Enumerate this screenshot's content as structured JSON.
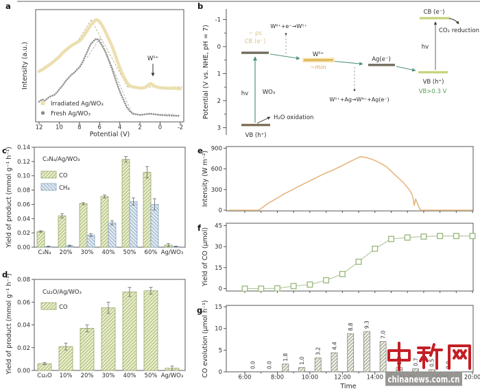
{
  "watermark": {
    "cn_text": "中新网",
    "site": "chinanews.com.cn",
    "red": "#c2161d",
    "box_color": "#8f8d8a"
  },
  "chart_data": [
    {
      "id": "a",
      "letter": "a",
      "type": "line",
      "xlabel": "Potential (V)",
      "ylabel": "Intensity (a.u.)",
      "x_ticks": [
        12,
        10,
        8,
        6,
        4,
        2,
        0,
        -2
      ],
      "x_range": [
        12,
        -2
      ],
      "annotation": {
        "text": "W⁵⁺",
        "x_v": 1.0
      },
      "legend": [
        {
          "label": "Irradiated Ag/WO₃",
          "color": "#ecdfb0",
          "marker": "square"
        },
        {
          "label": "Fresh Ag/WO₃",
          "color": "#8a8a8a",
          "marker": "circle"
        }
      ],
      "series": [
        {
          "name": "Irradiated Ag/WO₃",
          "color": "#ecdfb0",
          "points": [
            [
              12,
              45
            ],
            [
              11.6,
              47
            ],
            [
              11.2,
              49.5
            ],
            [
              10.8,
              52
            ],
            [
              10.4,
              55
            ],
            [
              10,
              58
            ],
            [
              9.6,
              62
            ],
            [
              9.2,
              65
            ],
            [
              8.8,
              68
            ],
            [
              8.4,
              70
            ],
            [
              8,
              72
            ],
            [
              7.7,
              75
            ],
            [
              7.4,
              79
            ],
            [
              7.1,
              83
            ],
            [
              6.9,
              86
            ],
            [
              6.7,
              88
            ],
            [
              6.5,
              90
            ],
            [
              6.3,
              91
            ],
            [
              6.1,
              90
            ],
            [
              5.9,
              88
            ],
            [
              5.7,
              85
            ],
            [
              5.4,
              80
            ],
            [
              5.1,
              74
            ],
            [
              4.8,
              68
            ],
            [
              4.5,
              61
            ],
            [
              4.2,
              53
            ],
            [
              3.9,
              46
            ],
            [
              3.6,
              40
            ],
            [
              3.3,
              35
            ],
            [
              3,
              32
            ],
            [
              2.6,
              31
            ],
            [
              2.2,
              30.5
            ],
            [
              1.8,
              30
            ],
            [
              1.4,
              31
            ],
            [
              1.1,
              33.5
            ],
            [
              0.9,
              34
            ],
            [
              0.6,
              32
            ],
            [
              0.3,
              31
            ],
            [
              0,
              30.5
            ],
            [
              -0.6,
              30
            ],
            [
              -1.2,
              30
            ],
            [
              -2,
              29.5
            ]
          ]
        },
        {
          "name": "Fresh Ag/WO₃",
          "color": "#8f8f8f",
          "points": [
            [
              12,
              18
            ],
            [
              11.7,
              20
            ],
            [
              11.4,
              19
            ],
            [
              11.1,
              21.5
            ],
            [
              10.8,
              23
            ],
            [
              10.5,
              24
            ],
            [
              10.2,
              26.5
            ],
            [
              10,
              29
            ],
            [
              9.7,
              32
            ],
            [
              9.4,
              36
            ],
            [
              9.1,
              39
            ],
            [
              8.8,
              42
            ],
            [
              8.5,
              44
            ],
            [
              8.2,
              47
            ],
            [
              8,
              48.5
            ],
            [
              7.7,
              53
            ],
            [
              7.4,
              59
            ],
            [
              7.1,
              65
            ],
            [
              6.9,
              69
            ],
            [
              6.7,
              71
            ],
            [
              6.5,
              73
            ],
            [
              6.3,
              74
            ],
            [
              6.1,
              73
            ],
            [
              5.9,
              70
            ],
            [
              5.7,
              67
            ],
            [
              5.4,
              62
            ],
            [
              5.1,
              55
            ],
            [
              4.8,
              48
            ],
            [
              4.5,
              40
            ],
            [
              4.2,
              32
            ],
            [
              3.9,
              25
            ],
            [
              3.6,
              19
            ],
            [
              3.3,
              13
            ],
            [
              3,
              9.5
            ],
            [
              2.7,
              7.5
            ],
            [
              2.4,
              6.8
            ],
            [
              2,
              6.1
            ],
            [
              1.5,
              6.7
            ],
            [
              1,
              7.4
            ],
            [
              0.5,
              6.7
            ],
            [
              0,
              6.1
            ],
            [
              -0.8,
              5.7
            ],
            [
              -1.5,
              5.5
            ],
            [
              -2,
              5.5
            ]
          ]
        }
      ]
    },
    {
      "id": "b",
      "letter": "b",
      "type": "diagram",
      "ylabel": "Potential (V vs. NHE, pH = 7)",
      "y_ticks": [
        -1,
        0,
        1,
        2,
        3
      ],
      "levels": [
        {
          "label": "CB (e⁻)",
          "sub": "~ ps",
          "V": 0.23,
          "color": "#716d5e"
        },
        {
          "label": "VB (h⁺)",
          "V": 2.9,
          "color": "#7e7158"
        },
        {
          "label": "W⁵⁺",
          "sub": "~min",
          "V": 0.5,
          "color": "#e3b95c"
        },
        {
          "label": "Ag(e⁻)",
          "V": 0.68,
          "color": "#716d5e"
        },
        {
          "label": "VB (h⁺)",
          "V": 0.95,
          "color": "#c7d57f"
        },
        {
          "label": "CB (e⁻)",
          "V": -1.05,
          "color": "#c7d57f"
        }
      ],
      "texts": {
        "ps": "~ ps",
        "cb1": "CB (e⁻)",
        "hv1": "hv",
        "wo3": "WO₃",
        "vb1": "VB (h⁺)",
        "h2o": "H₂O oxidation",
        "rxn1": "W⁶⁺+e⁻→W⁵⁺",
        "w5": "W⁵⁺",
        "min": "~min",
        "ag": "Ag(e⁻)",
        "rxn2": "W⁵⁺+Ag→W⁶⁺+Ag(e⁻)",
        "vb2": "VB (h⁺)",
        "vbnote": "VB>0.3 V",
        "hv2": "hv",
        "cb2": "CB (e⁻)",
        "co2": "CO₂ reduction"
      }
    },
    {
      "id": "c",
      "letter": "c",
      "type": "bar",
      "title": "C₃N₄/Ag/WO₃",
      "ylabel": "Yield of product (mmol g⁻¹ h⁻¹)",
      "ylim": [
        0,
        0.14
      ],
      "ytick_step": 0.02,
      "categories": [
        "C₃N₄",
        "20%",
        "30%",
        "40%",
        "50%",
        "60%",
        "Ag/WO₃"
      ],
      "series": [
        {
          "name": "CO",
          "values": [
            0.022,
            0.044,
            0.061,
            0.071,
            0.123,
            0.105,
            0.003
          ],
          "errors": [
            0.001,
            0.003,
            0.0015,
            0.002,
            0.004,
            0.008,
            0.002
          ],
          "fill": "#eaeecd",
          "hatch": "#a6b873"
        },
        {
          "name": "CH₄",
          "values": [
            0.001,
            0.002,
            0.017,
            0.034,
            0.064,
            0.06,
            0.001
          ],
          "errors": [
            0.0005,
            0.0008,
            0.002,
            0.003,
            0.005,
            0.008,
            0.0005
          ],
          "fill": "#e3ecf3",
          "hatch": "#93aec6"
        }
      ]
    },
    {
      "id": "d",
      "letter": "d",
      "type": "bar",
      "title": "Cu₂O/Ag/WO₃",
      "ylabel": "Yield of product (mmol g⁻¹ h⁻¹)",
      "ylim": [
        0,
        0.08
      ],
      "ytick_step": 0.02,
      "categories": [
        "Cu₂O",
        "10%",
        "20%",
        "30%",
        "40%",
        "50%",
        "Ag/WO₃"
      ],
      "series": [
        {
          "name": "CO",
          "values": [
            0.006,
            0.021,
            0.037,
            0.055,
            0.069,
            0.07,
            0.002
          ],
          "errors": [
            0.001,
            0.003,
            0.003,
            0.005,
            0.004,
            0.003,
            0.002
          ],
          "fill": "#eaeecd",
          "hatch": "#a6b873"
        }
      ]
    },
    {
      "id": "e",
      "letter": "e",
      "type": "line",
      "ylabel": "Intensity (W m⁻²)",
      "ylim": [
        0,
        900
      ],
      "y_ticks": [
        0,
        300,
        600,
        900
      ],
      "x_range_hours": [
        5,
        20
      ],
      "color": "#e4b77d",
      "points": [
        [
          5,
          0
        ],
        [
          6.85,
          0
        ],
        [
          7,
          25
        ],
        [
          7.2,
          60
        ],
        [
          7.5,
          110
        ],
        [
          7.8,
          150
        ],
        [
          8.1,
          190
        ],
        [
          8.4,
          235
        ],
        [
          8.7,
          270
        ],
        [
          9,
          305
        ],
        [
          9.3,
          345
        ],
        [
          9.6,
          380
        ],
        [
          9.9,
          415
        ],
        [
          10.2,
          450
        ],
        [
          10.5,
          485
        ],
        [
          10.8,
          520
        ],
        [
          11.1,
          550
        ],
        [
          11.4,
          580
        ],
        [
          11.7,
          615
        ],
        [
          12,
          650
        ],
        [
          12.3,
          685
        ],
        [
          12.6,
          720
        ],
        [
          12.9,
          755
        ],
        [
          13.1,
          775
        ],
        [
          13.3,
          772
        ],
        [
          13.5,
          762
        ],
        [
          13.8,
          742
        ],
        [
          14.1,
          710
        ],
        [
          14.4,
          675
        ],
        [
          14.7,
          632
        ],
        [
          15,
          568
        ],
        [
          15.25,
          510
        ],
        [
          15.5,
          455
        ],
        [
          15.75,
          400
        ],
        [
          16,
          330
        ],
        [
          16.15,
          285
        ],
        [
          16.3,
          220
        ],
        [
          16.42,
          70
        ],
        [
          16.5,
          165
        ],
        [
          16.62,
          95
        ],
        [
          16.75,
          20
        ],
        [
          16.82,
          0
        ],
        [
          20,
          0
        ]
      ]
    },
    {
      "id": "f",
      "letter": "f",
      "type": "line-marker",
      "ylabel": "Yield of CO (μmol)",
      "ylim": [
        0,
        45
      ],
      "y_ticks": [
        0,
        15,
        30,
        45
      ],
      "color": "#9dbb80",
      "x_hours": [
        6,
        7,
        8,
        9,
        10,
        11,
        12,
        13,
        14,
        15,
        16,
        17,
        18,
        19,
        20
      ],
      "values": [
        0,
        0,
        0.2,
        1.8,
        2.9,
        6,
        10.4,
        19.2,
        28.5,
        35.5,
        36.5,
        37.2,
        37.6,
        37.6,
        37.6
      ]
    },
    {
      "id": "g",
      "letter": "g",
      "type": "bar",
      "ylabel": "CO evolution (μmol h⁻¹)",
      "xlabel": "Time",
      "ylim": [
        0,
        15
      ],
      "y_ticks": [
        0,
        5,
        10,
        15
      ],
      "x_tick_hours": [
        6,
        8,
        10,
        12,
        14,
        16,
        18,
        20
      ],
      "x_tick_labels": [
        "6:00",
        "8:00",
        "10:00",
        "12:00",
        "14:00",
        "16:00",
        "18:00",
        "20:00"
      ],
      "bar_hours": [
        6.5,
        7.5,
        8.5,
        9.5,
        10.5,
        11.5,
        12.5,
        13.5,
        14.5,
        15.5,
        16.5,
        17.5,
        18.5
      ],
      "values": [
        0,
        0,
        1.8,
        1,
        3.2,
        4.4,
        8.8,
        9.3,
        7,
        1,
        0.7,
        0.5,
        0
      ],
      "labels": [
        "0.0",
        "0.0",
        "1.8",
        "1.0",
        "3.2",
        "4.4",
        "8.8",
        "9.3",
        "7.0",
        "1.0",
        "0.7",
        "0.5",
        "0.0"
      ],
      "fill": "#f0efe6",
      "hatch": "#8f8f80"
    }
  ]
}
